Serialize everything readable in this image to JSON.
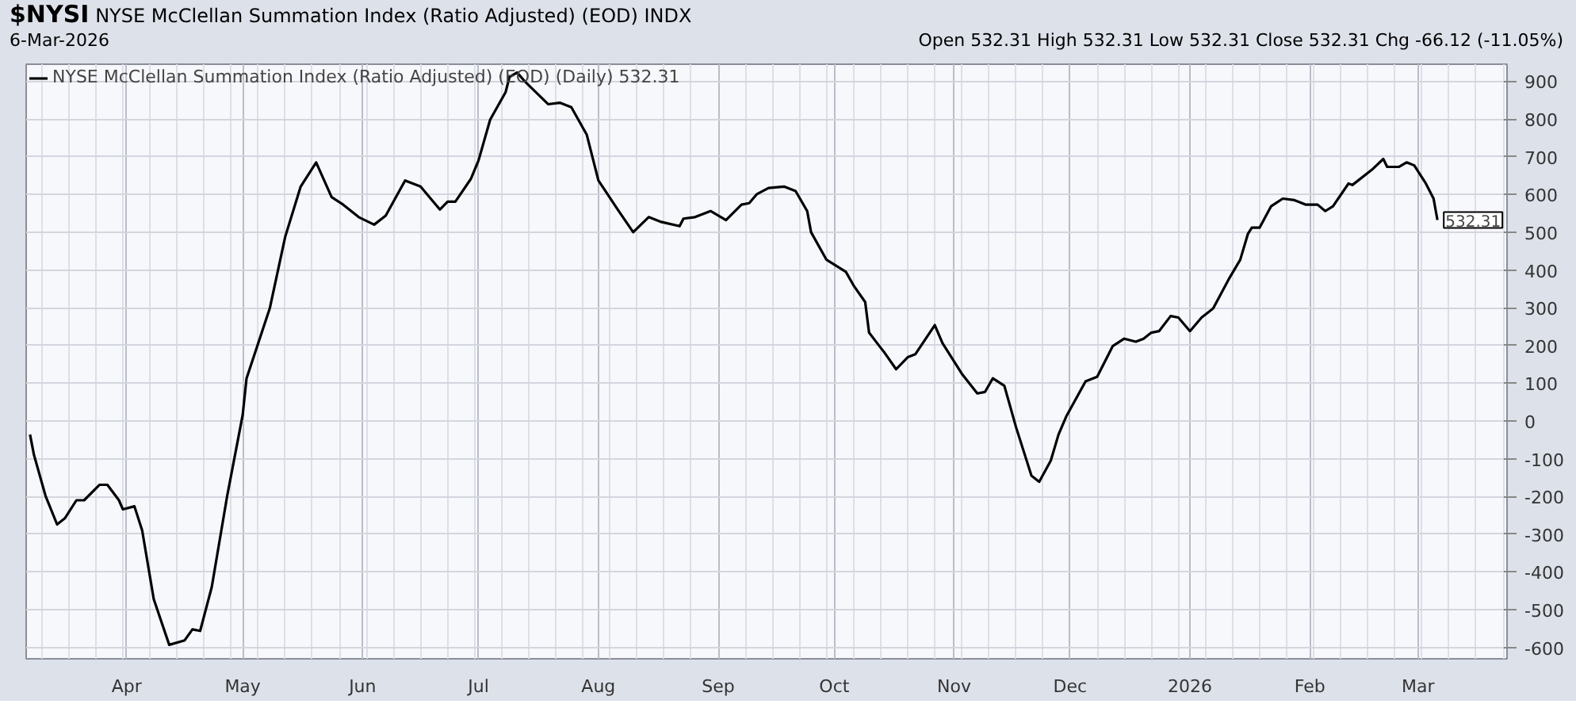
{
  "chart_data": {
    "type": "line",
    "title": "$NYSI",
    "subtitle": "NYSE McClellan Summation Index (Ratio Adjusted) (EOD) INDX",
    "annotations": [
      "6-Mar-2026",
      "Open 532.31 High 532.31 Low 532.31 Close 532.31 Chg -66.12 (-11.05%)",
      {
        "text": "532.31",
        "x": "2026-03-06",
        "y": 532.31
      }
    ],
    "series": [
      {
        "name": "NYSE McClellan Summation Index (Ratio Adjusted) (EOD) (Daily) 532.31",
        "color": "#000000",
        "x": [
          "2025-03-07",
          "2025-03-08",
          "2025-03-11",
          "2025-03-14",
          "2025-03-16",
          "2025-03-19",
          "2025-03-21",
          "2025-03-25",
          "2025-03-27",
          "2025-03-30",
          "2025-03-31",
          "2025-04-03",
          "2025-04-05",
          "2025-04-08",
          "2025-04-12",
          "2025-04-16",
          "2025-04-18",
          "2025-04-20",
          "2025-04-23",
          "2025-04-27",
          "2025-05-01",
          "2025-05-02",
          "2025-05-08",
          "2025-05-12",
          "2025-05-16",
          "2025-05-20",
          "2025-05-24",
          "2025-05-27",
          "2025-05-31",
          "2025-06-04",
          "2025-06-07",
          "2025-06-12",
          "2025-06-16",
          "2025-06-21",
          "2025-06-23",
          "2025-06-25",
          "2025-06-29",
          "2025-07-01",
          "2025-07-04",
          "2025-07-08",
          "2025-07-09",
          "2025-07-11",
          "2025-07-13",
          "2025-07-15",
          "2025-07-19",
          "2025-07-22",
          "2025-07-25",
          "2025-07-29",
          "2025-08-01",
          "2025-08-06",
          "2025-08-10",
          "2025-08-14",
          "2025-08-17",
          "2025-08-22",
          "2025-08-23",
          "2025-08-26",
          "2025-08-30",
          "2025-09-03",
          "2025-09-07",
          "2025-09-09",
          "2025-09-11",
          "2025-09-14",
          "2025-09-18",
          "2025-09-21",
          "2025-09-24",
          "2025-09-25",
          "2025-09-29",
          "2025-10-04",
          "2025-10-06",
          "2025-10-09",
          "2025-10-10",
          "2025-10-13",
          "2025-10-14",
          "2025-10-17",
          "2025-10-20",
          "2025-10-22",
          "2025-10-27",
          "2025-10-29",
          "2025-11-03",
          "2025-11-07",
          "2025-11-09",
          "2025-11-11",
          "2025-11-14",
          "2025-11-17",
          "2025-11-21",
          "2025-11-23",
          "2025-11-26",
          "2025-11-28",
          "2025-11-30",
          "2025-12-05",
          "2025-12-08",
          "2025-12-12",
          "2025-12-15",
          "2025-12-18",
          "2025-12-20",
          "2025-12-22",
          "2025-12-24",
          "2025-12-27",
          "2025-12-29",
          "2026-01-01",
          "2026-01-04",
          "2026-01-07",
          "2026-01-11",
          "2026-01-14",
          "2026-01-16",
          "2026-01-17",
          "2026-01-19",
          "2026-01-22",
          "2026-01-25",
          "2026-01-28",
          "2026-01-31",
          "2026-02-03",
          "2026-02-05",
          "2026-02-07",
          "2026-02-11",
          "2026-02-12",
          "2026-02-17",
          "2026-02-20",
          "2026-02-21",
          "2026-02-24",
          "2026-02-26",
          "2026-02-28",
          "2026-03-03",
          "2026-03-05",
          "2026-03-06"
        ],
        "values": [
          -36,
          -89,
          -198,
          -274,
          -258,
          -210,
          -210,
          -169,
          -169,
          -210,
          -234,
          -226,
          -290,
          -472,
          -593,
          -581,
          -552,
          -556,
          -440,
          -198,
          16,
          113,
          298,
          488,
          621,
          685,
          593,
          573,
          540,
          520,
          544,
          637,
          621,
          560,
          581,
          581,
          641,
          690,
          798,
          871,
          911,
          923,
          899,
          879,
          839,
          843,
          831,
          758,
          637,
          560,
          500,
          540,
          528,
          516,
          536,
          540,
          556,
          532,
          573,
          577,
          601,
          617,
          621,
          609,
          556,
          500,
          427,
          395,
          359,
          315,
          234,
          194,
          181,
          137,
          169,
          177,
          254,
          206,
          125,
          73,
          77,
          113,
          93,
          -16,
          -145,
          -161,
          -105,
          -36,
          12,
          105,
          117,
          198,
          218,
          210,
          218,
          234,
          238,
          278,
          274,
          238,
          274,
          298,
          375,
          427,
          496,
          512,
          512,
          569,
          589,
          585,
          573,
          573,
          556,
          569,
          629,
          625,
          665,
          694,
          673,
          673,
          685,
          677,
          629,
          589,
          532.31
        ]
      }
    ],
    "xlim": [
      "2025-03-06",
      "2026-03-24"
    ],
    "xticks": [
      {
        "value": "2025-04-01",
        "label": "Apr"
      },
      {
        "value": "2025-05-01",
        "label": "May"
      },
      {
        "value": "2025-06-01",
        "label": "Jun"
      },
      {
        "value": "2025-07-01",
        "label": "Jul"
      },
      {
        "value": "2025-08-01",
        "label": "Aug"
      },
      {
        "value": "2025-09-01",
        "label": "Sep"
      },
      {
        "value": "2025-10-01",
        "label": "Oct"
      },
      {
        "value": "2025-11-01",
        "label": "Nov"
      },
      {
        "value": "2025-12-01",
        "label": "Dec"
      },
      {
        "value": "2026-01-01",
        "label": "2026"
      },
      {
        "value": "2026-02-01",
        "label": "Feb"
      },
      {
        "value": "2026-03-01",
        "label": "Mar"
      }
    ],
    "ylim": [
      -630,
      945
    ],
    "yticks": [
      -600,
      -500,
      -400,
      -300,
      -200,
      -100,
      0,
      100,
      200,
      300,
      400,
      500,
      600,
      700,
      800,
      900
    ],
    "grid": true,
    "legend": "top left",
    "marker": "none",
    "line_style": "solid"
  }
}
